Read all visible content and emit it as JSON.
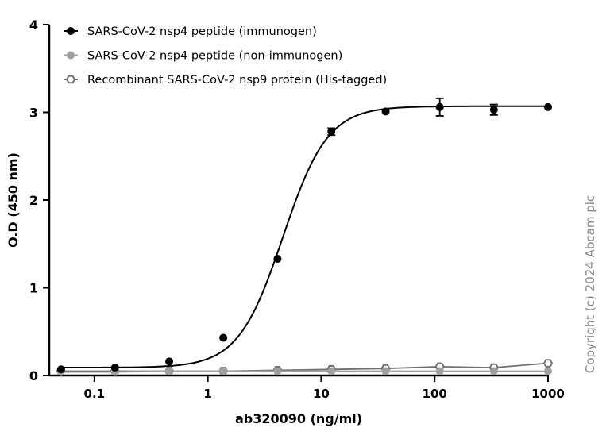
{
  "chart_data": {
    "type": "scatter",
    "xscale": "log",
    "xlabel": "ab320090 (ng/ml)",
    "ylabel": "O.D (450 nm)",
    "xlim": [
      0.04,
      1000
    ],
    "ylim": [
      0,
      4
    ],
    "xticks": [
      0.1,
      1,
      10,
      100,
      1000
    ],
    "xtick_labels": [
      "0.1",
      "1",
      "10",
      "100",
      "1000"
    ],
    "yticks": [
      0,
      1,
      2,
      3,
      4
    ],
    "ytick_labels": [
      "0",
      "1",
      "2",
      "3",
      "4"
    ],
    "x": [
      0.0508,
      0.152,
      0.457,
      1.37,
      4.12,
      12.3,
      37.0,
      111,
      333,
      1000
    ],
    "series": [
      {
        "name": "SARS-CoV-2 nsp4 peptide (immunogen)",
        "color": "#000000",
        "marker": "filled-circle",
        "values": [
          0.07,
          0.09,
          0.16,
          0.43,
          1.33,
          2.78,
          3.01,
          3.06,
          3.03,
          3.06
        ],
        "errors": [
          0,
          0,
          0,
          0,
          0,
          0.04,
          0,
          0.1,
          0.06,
          0
        ],
        "fit": {
          "model": "4PL",
          "bottom": 0.09,
          "top": 3.07,
          "ec50": 4.6,
          "hill": 2.2
        }
      },
      {
        "name": "SARS-CoV-2 nsp4 peptide (non-immunogen)",
        "color": "#a0a0a0",
        "marker": "filled-circle",
        "values": [
          0.04,
          0.04,
          0.05,
          0.05,
          0.05,
          0.05,
          0.05,
          0.05,
          0.05,
          0.05
        ]
      },
      {
        "name": "Recombinant SARS-CoV-2 nsp9 protein (His-tagged)",
        "color": "#707070",
        "marker": "open-hexagon",
        "values": [
          0.05,
          0.05,
          0.05,
          0.05,
          0.06,
          0.07,
          0.08,
          0.1,
          0.09,
          0.14
        ]
      }
    ],
    "legend": "top-left"
  },
  "copyright": "Copyright (c) 2024 Abcam plc"
}
